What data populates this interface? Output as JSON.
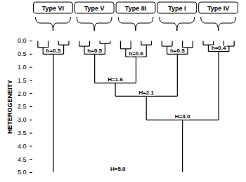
{
  "chart_data": {
    "type": "dendrogram",
    "ylabel": "HETEROGENEITY",
    "ylim": [
      0,
      5
    ],
    "yticks": [
      0,
      0.5,
      1,
      1.5,
      2,
      2.5,
      3,
      3.5,
      4,
      4.5,
      5
    ],
    "tree": {
      "label": "H=5.0",
      "height": 5.0,
      "children": [
        {
          "name": "Type VI",
          "label": "h=0.5",
          "height": 0.5,
          "children": [
            {
              "height": 0.25,
              "children": [
                {
                  "height": 0
                },
                {
                  "height": 0
                }
              ]
            },
            {
              "height": 0.15,
              "children": [
                {
                  "height": 0
                },
                {
                  "height": 0
                }
              ]
            }
          ]
        },
        {
          "label": "H=3.0",
          "height": 3.0,
          "children": [
            {
              "label": "H=2.1",
              "height": 2.1,
              "children": [
                {
                  "label": "H=1.6",
                  "height": 1.6,
                  "children": [
                    {
                      "name": "Type V",
                      "label": "h=0.5",
                      "height": 0.5,
                      "children": [
                        {
                          "height": 0.2,
                          "children": [
                            {
                              "height": 0
                            },
                            {
                              "height": 0
                            }
                          ]
                        },
                        {
                          "height": 0.1,
                          "children": [
                            {
                              "height": 0
                            },
                            {
                              "height": 0
                            }
                          ]
                        }
                      ]
                    },
                    {
                      "name": "Type III",
                      "label": "h=0.6",
                      "height": 0.6,
                      "children": [
                        {
                          "height": 0.3,
                          "children": [
                            {
                              "height": 0
                            },
                            {
                              "height": 0
                            }
                          ]
                        },
                        {
                          "height": 0.15,
                          "children": [
                            {
                              "height": 0
                            },
                            {
                              "height": 0
                            }
                          ]
                        }
                      ]
                    }
                  ]
                },
                {
                  "name": "Type I",
                  "label": "h=0.5",
                  "height": 0.5,
                  "children": [
                    {
                      "height": 0.2,
                      "children": [
                        {
                          "height": 0
                        },
                        {
                          "height": 0
                        }
                      ]
                    },
                    {
                      "height": 0.25,
                      "children": [
                        {
                          "height": 0
                        },
                        {
                          "height": 0
                        }
                      ]
                    }
                  ]
                }
              ]
            },
            {
              "name": "Type IV",
              "label": "h=0.4",
              "height": 0.4,
              "children": [
                {
                  "height": 0.15,
                  "children": [
                    {
                      "height": 0
                    },
                    {
                      "height": 0
                    }
                  ]
                },
                {
                  "height": 0.2,
                  "children": [
                    {
                      "height": 0
                    },
                    {
                      "height": 0
                    }
                  ]
                }
              ]
            }
          ]
        }
      ]
    }
  }
}
